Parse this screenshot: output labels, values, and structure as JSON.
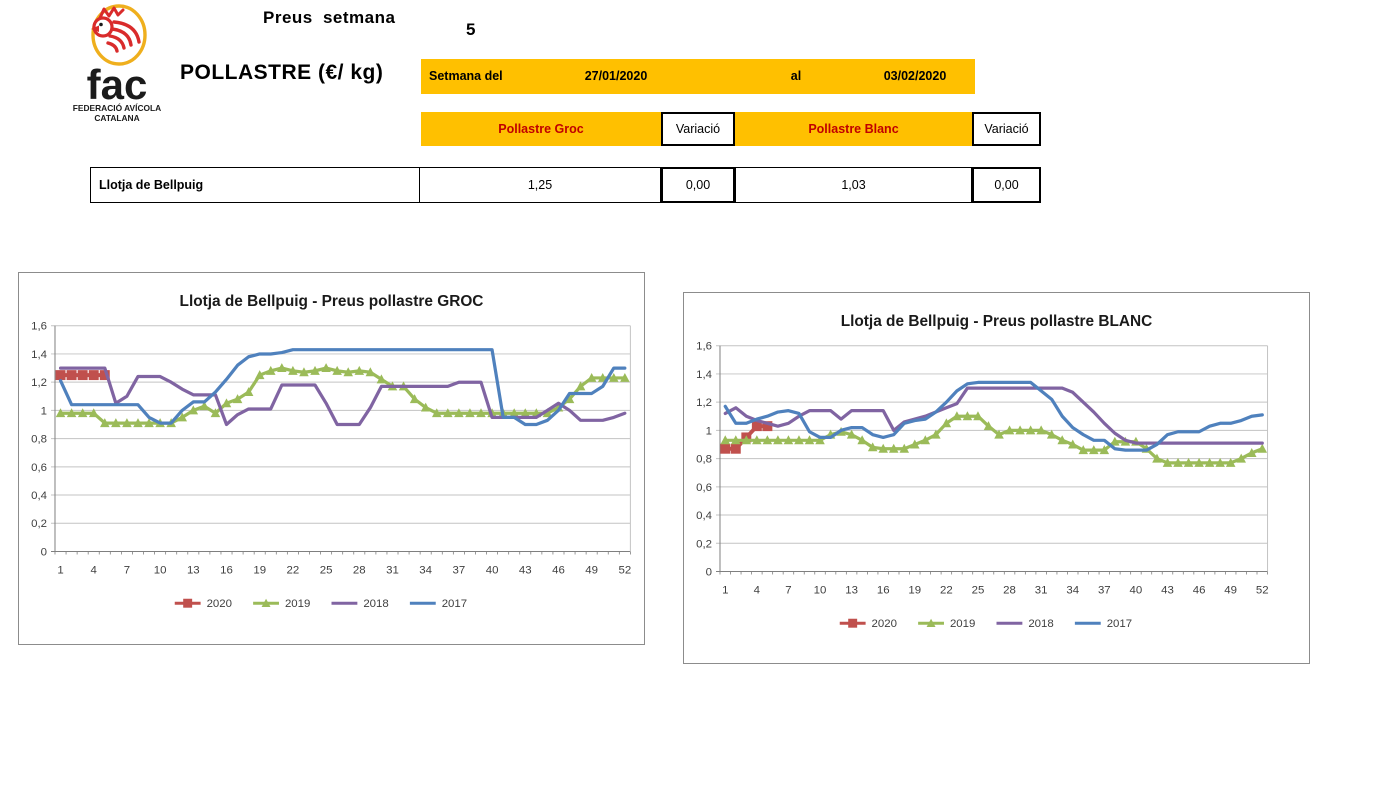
{
  "logo": {
    "icon": "rooster-icon",
    "abbrev": "fac",
    "org_line1": "FEDERACIÓ AVÍCOLA",
    "org_line2": "CATALANA"
  },
  "header": {
    "report_title": "Preus setmana",
    "week_number": "5",
    "product_title": "POLLASTRE (€/ kg)",
    "week_bar": {
      "from_label": "Setmana del",
      "from_date": "27/01/2020",
      "to_label": "al",
      "to_date": "03/02/2020"
    }
  },
  "price_table": {
    "col_groc": "Pollastre Groc",
    "col_var1": "Variació",
    "col_blanc": "Pollastre Blanc",
    "col_var2": "Variació",
    "row": {
      "market": "Llotja de Bellpuig",
      "groc_price": "1,25",
      "groc_var": "0,00",
      "blanc_price": "1,03",
      "blanc_var": "0,00"
    }
  },
  "colors": {
    "accent_yellow": "#FFC000",
    "header_text_red": "#C00000",
    "series_2020": "#C0504D",
    "series_2019": "#9BBB59",
    "series_2018": "#8064A2",
    "series_2017": "#4F81BD",
    "gridline": "#C3C3C3",
    "axis": "#7F7F7F"
  },
  "chart_data": [
    {
      "type": "line",
      "title": "Llotja de Bellpuig - Preus pollastre GROC",
      "xlabel": "",
      "ylabel": "",
      "weeks": 52,
      "ylim": [
        0,
        1.6
      ],
      "ytick_step": 0.2,
      "x_label_weeks": [
        1,
        4,
        7,
        10,
        13,
        16,
        19,
        22,
        25,
        28,
        31,
        34,
        37,
        40,
        43,
        46,
        49,
        52
      ],
      "grid": true,
      "legend_position": "bottom",
      "series": [
        {
          "name": "2020",
          "marker": "square",
          "values": [
            1.25,
            1.25,
            1.25,
            1.25,
            1.25
          ]
        },
        {
          "name": "2019",
          "marker": "triangle",
          "values": [
            0.98,
            0.98,
            0.98,
            0.98,
            0.91,
            0.91,
            0.91,
            0.91,
            0.91,
            0.91,
            0.91,
            0.95,
            1.0,
            1.03,
            0.98,
            1.05,
            1.08,
            1.13,
            1.25,
            1.28,
            1.3,
            1.28,
            1.27,
            1.28,
            1.3,
            1.28,
            1.27,
            1.28,
            1.27,
            1.22,
            1.17,
            1.17,
            1.08,
            1.02,
            0.98,
            0.98,
            0.98,
            0.98,
            0.98,
            0.98,
            0.98,
            0.98,
            0.98,
            0.98,
            0.98,
            1.02,
            1.08,
            1.17,
            1.23,
            1.23,
            1.23,
            1.23
          ]
        },
        {
          "name": "2018",
          "marker": "none",
          "values": [
            1.3,
            1.3,
            1.3,
            1.3,
            1.3,
            1.05,
            1.1,
            1.24,
            1.24,
            1.24,
            1.2,
            1.15,
            1.11,
            1.11,
            1.11,
            0.9,
            0.97,
            1.01,
            1.01,
            1.01,
            1.18,
            1.18,
            1.18,
            1.18,
            1.05,
            0.9,
            0.9,
            0.9,
            1.02,
            1.17,
            1.17,
            1.17,
            1.17,
            1.17,
            1.17,
            1.17,
            1.2,
            1.2,
            1.2,
            0.95,
            0.95,
            0.95,
            0.95,
            0.95,
            1.0,
            1.05,
            1.0,
            0.93,
            0.93,
            0.93,
            0.95,
            0.98
          ]
        },
        {
          "name": "2017",
          "marker": "none",
          "values": [
            1.21,
            1.04,
            1.04,
            1.04,
            1.04,
            1.04,
            1.04,
            1.04,
            0.95,
            0.91,
            0.91,
            1.0,
            1.06,
            1.06,
            1.13,
            1.22,
            1.32,
            1.38,
            1.4,
            1.4,
            1.41,
            1.43,
            1.43,
            1.43,
            1.43,
            1.43,
            1.43,
            1.43,
            1.43,
            1.43,
            1.43,
            1.43,
            1.43,
            1.43,
            1.43,
            1.43,
            1.43,
            1.43,
            1.43,
            1.43,
            0.95,
            0.95,
            0.9,
            0.9,
            0.93,
            1.0,
            1.12,
            1.12,
            1.12,
            1.17,
            1.3,
            1.3
          ]
        }
      ]
    },
    {
      "type": "line",
      "title": "Llotja de Bellpuig - Preus pollastre BLANC",
      "xlabel": "",
      "ylabel": "",
      "weeks": 52,
      "ylim": [
        0,
        1.6
      ],
      "ytick_step": 0.2,
      "x_label_weeks": [
        1,
        4,
        7,
        10,
        13,
        16,
        19,
        22,
        25,
        28,
        31,
        34,
        37,
        40,
        43,
        46,
        49,
        52
      ],
      "grid": true,
      "legend_position": "bottom",
      "series": [
        {
          "name": "2020",
          "marker": "square",
          "values": [
            0.87,
            0.87,
            0.95,
            1.03,
            1.03
          ]
        },
        {
          "name": "2019",
          "marker": "triangle",
          "values": [
            0.93,
            0.93,
            0.93,
            0.93,
            0.93,
            0.93,
            0.93,
            0.93,
            0.93,
            0.93,
            0.97,
            0.99,
            0.97,
            0.93,
            0.88,
            0.87,
            0.87,
            0.87,
            0.9,
            0.93,
            0.97,
            1.05,
            1.1,
            1.1,
            1.1,
            1.03,
            0.97,
            1.0,
            1.0,
            1.0,
            1.0,
            0.97,
            0.93,
            0.9,
            0.86,
            0.86,
            0.86,
            0.92,
            0.92,
            0.92,
            0.87,
            0.8,
            0.77,
            0.77,
            0.77,
            0.77,
            0.77,
            0.77,
            0.77,
            0.8,
            0.84,
            0.87
          ]
        },
        {
          "name": "2018",
          "marker": "none",
          "values": [
            1.12,
            1.16,
            1.1,
            1.07,
            1.05,
            1.03,
            1.05,
            1.1,
            1.14,
            1.14,
            1.14,
            1.08,
            1.14,
            1.14,
            1.14,
            1.14,
            1.0,
            1.06,
            1.08,
            1.1,
            1.13,
            1.16,
            1.19,
            1.3,
            1.3,
            1.3,
            1.3,
            1.3,
            1.3,
            1.3,
            1.3,
            1.3,
            1.3,
            1.27,
            1.2,
            1.13,
            1.05,
            0.98,
            0.93,
            0.91,
            0.91,
            0.91,
            0.91,
            0.91,
            0.91,
            0.91,
            0.91,
            0.91,
            0.91,
            0.91,
            0.91,
            0.91
          ]
        },
        {
          "name": "2017",
          "marker": "none",
          "values": [
            1.17,
            1.05,
            1.05,
            1.08,
            1.1,
            1.13,
            1.14,
            1.12,
            0.99,
            0.95,
            0.95,
            1.0,
            1.02,
            1.02,
            0.97,
            0.95,
            0.97,
            1.05,
            1.07,
            1.08,
            1.13,
            1.2,
            1.28,
            1.33,
            1.34,
            1.34,
            1.34,
            1.34,
            1.34,
            1.34,
            1.28,
            1.22,
            1.1,
            1.02,
            0.97,
            0.93,
            0.93,
            0.87,
            0.86,
            0.86,
            0.86,
            0.9,
            0.97,
            0.99,
            0.99,
            0.99,
            1.03,
            1.05,
            1.05,
            1.07,
            1.1,
            1.11
          ]
        }
      ]
    }
  ]
}
